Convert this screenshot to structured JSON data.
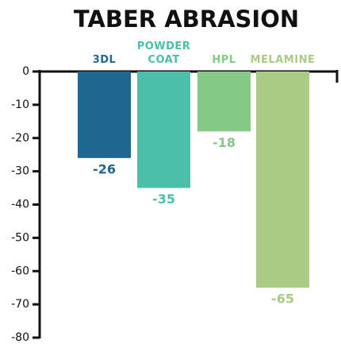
{
  "chart_data": {
    "type": "bar",
    "title": "TABER ABRASION",
    "categories": [
      "3DL",
      "POWDER COAT",
      "HPL",
      "MELAMINE"
    ],
    "values": [
      -26,
      -35,
      -18,
      -65
    ],
    "colors": [
      "#1f6690",
      "#4bbfa9",
      "#84c985",
      "#a9cb84"
    ],
    "ylim": [
      -80,
      0
    ],
    "yticks": [
      0,
      -10,
      -20,
      -30,
      -40,
      -50,
      -60,
      -70,
      -80
    ]
  }
}
